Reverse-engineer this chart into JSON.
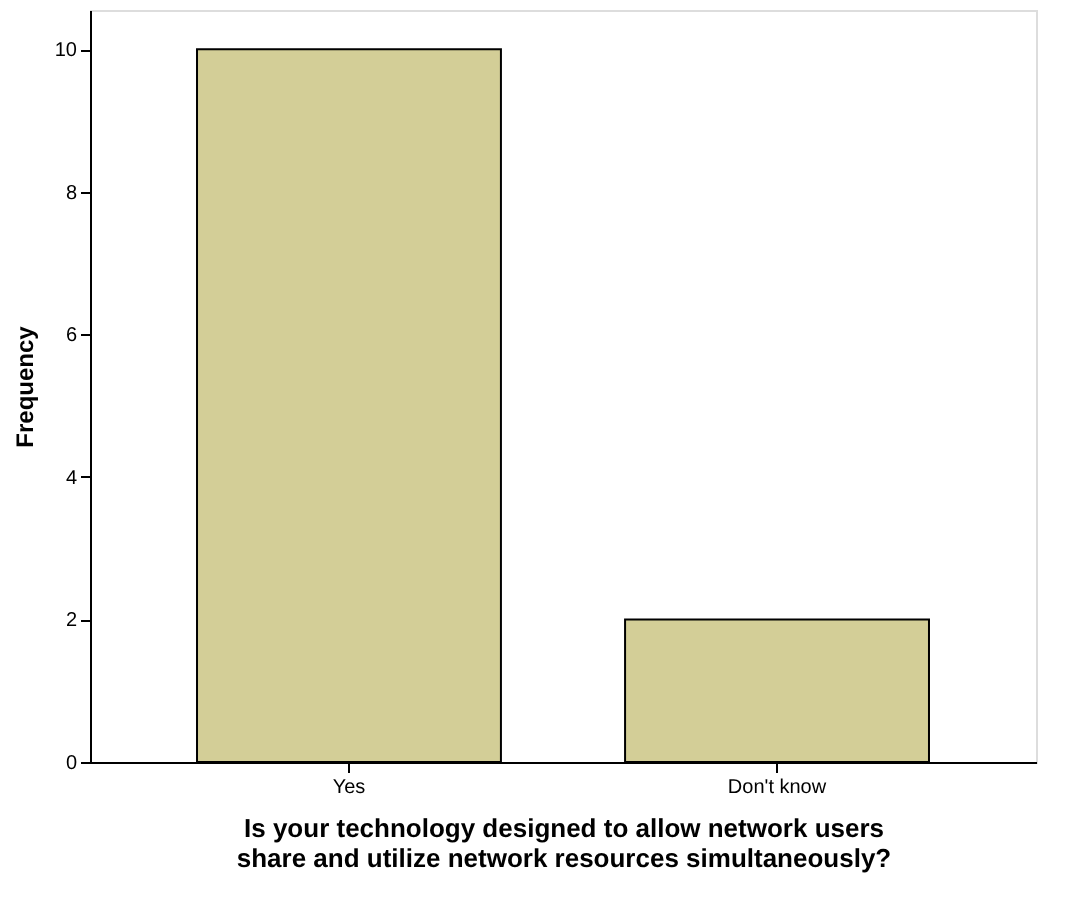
{
  "chart_data": {
    "type": "bar",
    "categories": [
      "Yes",
      "Don't know"
    ],
    "values": [
      10,
      2
    ],
    "color": "#d3ce97",
    "ylim": [
      0,
      10.55
    ],
    "yticks": [
      0,
      2,
      4,
      6,
      8,
      10
    ],
    "ylabel": "Frequency",
    "xlabel": "Is your technology designed to allow network users share and utilize network resources simultaneously?",
    "grid": false
  }
}
